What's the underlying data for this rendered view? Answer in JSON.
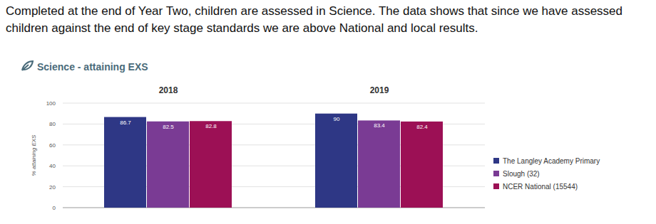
{
  "caption": "Completed at the end of Year Two, children are assessed in Science. The data shows that since we have assessed children against the end of key stage standards we are above National and local results.",
  "chart_data": {
    "type": "bar",
    "title": "Science - attaining EXS",
    "y_label": "% attaining EXS",
    "categories": [
      "2018",
      "2019"
    ],
    "series": [
      {
        "name": "The Langley Academy Primary",
        "color": "#2e3785",
        "values": [
          86.7,
          90
        ]
      },
      {
        "name": "Slough (32)",
        "color": "#7a3b94",
        "values": [
          82.5,
          83.4
        ]
      },
      {
        "name": "NCER National (15544)",
        "color": "#9c1055",
        "values": [
          82.8,
          82.4
        ]
      }
    ],
    "ylim": [
      0,
      100
    ],
    "yticks": [
      0,
      20,
      40,
      60,
      80,
      100
    ],
    "grid": true,
    "data_labels": true,
    "legend": "right"
  }
}
